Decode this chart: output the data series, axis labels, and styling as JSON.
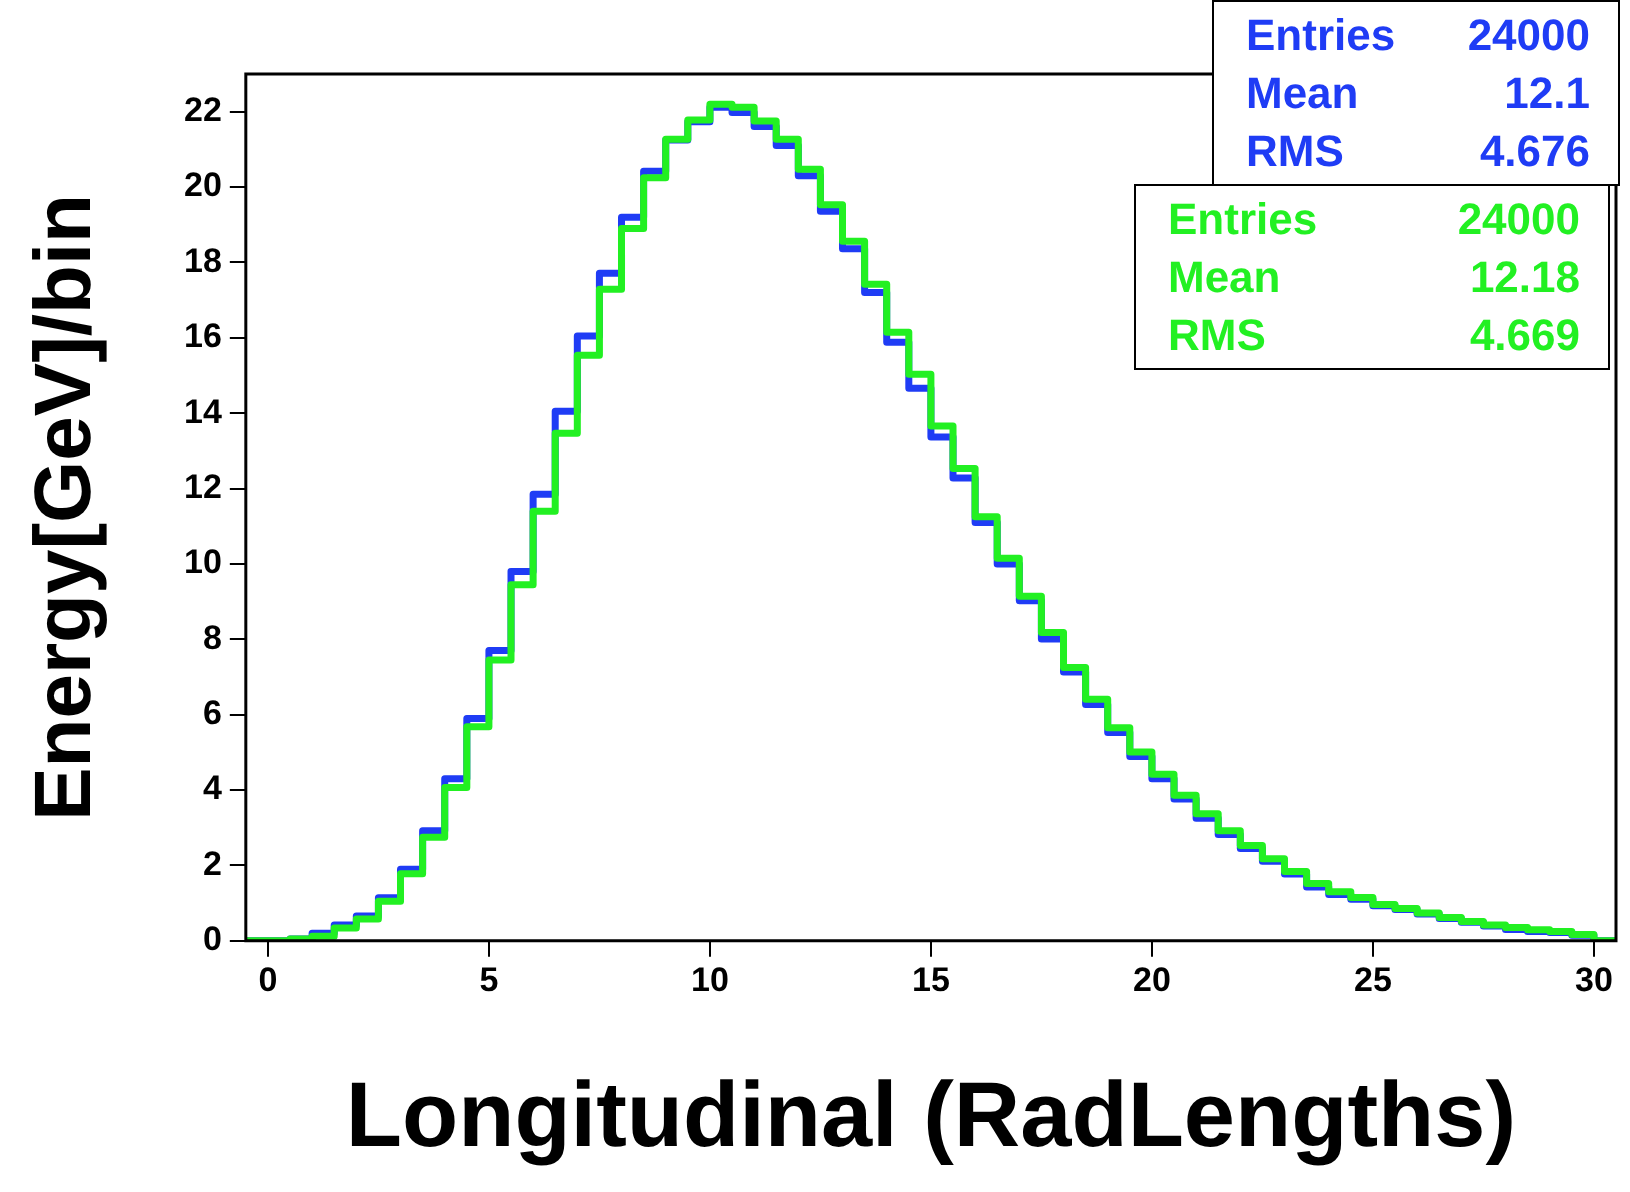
{
  "chart_data": {
    "type": "histogram",
    "xlabel": "Longitudinal (RadLengths)",
    "ylabel": "Energy[GeV]/bin",
    "bins": [
      -0.5,
      0,
      0.5,
      1,
      1.5,
      2,
      2.5,
      3,
      3.5,
      4,
      4.5,
      5,
      5.5,
      6,
      6.5,
      7,
      7.5,
      8,
      8.5,
      9,
      9.5,
      10,
      10.5,
      11,
      11.5,
      12,
      12.5,
      13,
      13.5,
      14,
      14.5,
      15,
      15.5,
      16,
      16.5,
      17,
      17.5,
      18,
      18.5,
      19,
      19.5,
      20,
      20.5,
      21,
      21.5,
      22,
      22.5,
      23,
      23.5,
      24,
      24.5,
      25,
      25.5,
      26,
      26.5,
      27,
      27.5,
      28,
      28.5,
      29,
      29.5,
      30,
      30.5
    ],
    "series": [
      {
        "color": "#1f3cf5",
        "values": [
          0,
          0,
          0.05,
          0.2,
          0.42,
          0.66,
          1.14,
          1.9,
          2.92,
          4.3,
          5.9,
          7.7,
          9.8,
          11.85,
          14.05,
          16.05,
          17.71,
          19.2,
          20.42,
          21.25,
          21.73,
          22.12,
          21.98,
          21.61,
          21.1,
          20.3,
          19.36,
          18.36,
          17.2,
          15.88,
          14.66,
          13.37,
          12.28,
          11.1,
          10.0,
          9.02,
          8.01,
          7.13,
          6.27,
          5.53,
          4.89,
          4.3,
          3.76,
          3.25,
          2.82,
          2.45,
          2.11,
          1.77,
          1.43,
          1.23,
          1.1,
          0.93,
          0.83,
          0.71,
          0.59,
          0.49,
          0.39,
          0.3,
          0.25,
          0.22,
          0.15,
          0
        ]
      },
      {
        "color": "#22f022",
        "values": [
          0,
          0,
          0.05,
          0.12,
          0.34,
          0.58,
          1.05,
          1.78,
          2.75,
          4.07,
          5.68,
          7.45,
          9.45,
          11.4,
          13.47,
          15.54,
          17.29,
          18.9,
          20.25,
          21.27,
          21.78,
          22.2,
          22.12,
          21.75,
          21.27,
          20.47,
          19.53,
          18.56,
          17.42,
          16.15,
          15.03,
          13.66,
          12.53,
          11.25,
          10.15,
          9.14,
          8.18,
          7.25,
          6.41,
          5.65,
          5.01,
          4.42,
          3.86,
          3.37,
          2.92,
          2.53,
          2.18,
          1.84,
          1.52,
          1.3,
          1.15,
          0.96,
          0.86,
          0.74,
          0.62,
          0.51,
          0.42,
          0.35,
          0.29,
          0.25,
          0.17,
          0
        ]
      }
    ],
    "xlim": [
      -0.5,
      30.5
    ],
    "xticks": [
      0,
      5,
      10,
      15,
      20,
      25,
      30
    ],
    "ylim": [
      0,
      23
    ],
    "yticks": [
      0,
      2,
      4,
      6,
      8,
      10,
      12,
      14,
      16,
      18,
      20,
      22
    ],
    "annotations": [
      "Entries 24000",
      "Mean 12.1",
      "RMS 4.676",
      "Entries 24000",
      "Mean 12.18",
      "RMS 4.669"
    ],
    "grid": false,
    "legend": false
  }
}
